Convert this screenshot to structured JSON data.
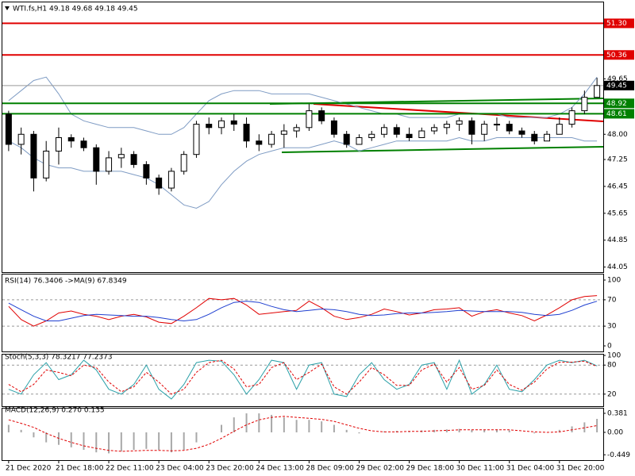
{
  "chart_data": [
    {
      "type": "candlestick",
      "title": "WTI.fs,H1  49.18 49.68 49.18 49.45",
      "categories": [
        "21 Dec 2020",
        null,
        null,
        null,
        "21 Dec 18:00",
        null,
        null,
        null,
        "22 Dec 11:00",
        null,
        null,
        null,
        "23 Dec 04:00",
        null,
        null,
        null,
        "23 Dec 20:00",
        null,
        null,
        null,
        "24 Dec 13:00",
        null,
        null,
        null,
        "28 Dec 09:00",
        null,
        null,
        null,
        "29 Dec 02:00",
        null,
        null,
        null,
        "29 Dec 18:00",
        null,
        null,
        null,
        "30 Dec 11:00",
        null,
        null,
        null,
        "31 Dec 04:00",
        null,
        null,
        null,
        "31 Dec 20:00",
        null,
        null,
        null
      ],
      "open": [
        48.6,
        47.7,
        48.0,
        46.7,
        47.5,
        47.9,
        47.8,
        47.6,
        46.9,
        47.3,
        47.4,
        47.1,
        46.7,
        46.4,
        46.9,
        47.4,
        48.3,
        48.2,
        48.4,
        48.3,
        47.8,
        47.7,
        48.0,
        48.1,
        48.2,
        48.7,
        48.4,
        48.0,
        47.7,
        47.9,
        48.0,
        48.2,
        48.0,
        47.9,
        48.1,
        48.2,
        48.3,
        48.4,
        48.0,
        48.3,
        48.3,
        48.1,
        48.0,
        47.8,
        48.0,
        48.3,
        48.7,
        49.1
      ],
      "high": [
        48.7,
        48.2,
        48.1,
        47.8,
        48.2,
        48.0,
        47.9,
        47.7,
        47.5,
        47.6,
        47.5,
        47.2,
        46.8,
        47.0,
        47.5,
        48.4,
        48.5,
        48.5,
        48.6,
        48.5,
        48.0,
        48.1,
        48.3,
        48.3,
        48.9,
        48.8,
        48.5,
        48.1,
        48.0,
        48.1,
        48.3,
        48.3,
        48.2,
        48.2,
        48.3,
        48.4,
        48.5,
        48.5,
        48.4,
        48.5,
        48.4,
        48.2,
        48.1,
        48.1,
        48.5,
        48.8,
        49.3,
        49.68
      ],
      "low": [
        47.5,
        47.4,
        46.3,
        46.6,
        47.1,
        47.6,
        47.5,
        46.5,
        46.8,
        47.0,
        47.0,
        46.5,
        46.2,
        46.3,
        46.8,
        47.3,
        48.0,
        48.0,
        48.1,
        47.6,
        47.5,
        47.6,
        47.6,
        47.9,
        48.1,
        48.3,
        47.9,
        47.6,
        47.7,
        47.8,
        47.9,
        47.9,
        47.8,
        47.9,
        48.0,
        48.0,
        48.1,
        47.7,
        47.8,
        48.1,
        48.0,
        47.9,
        47.7,
        47.8,
        48.0,
        48.2,
        48.6,
        49.1
      ],
      "close": [
        47.7,
        48.0,
        46.7,
        47.5,
        47.9,
        47.8,
        47.6,
        46.9,
        47.3,
        47.4,
        47.1,
        46.7,
        46.4,
        46.9,
        47.4,
        48.3,
        48.2,
        48.4,
        48.3,
        47.8,
        47.7,
        48.0,
        48.1,
        48.2,
        48.7,
        48.4,
        48.0,
        47.7,
        47.9,
        48.0,
        48.2,
        48.0,
        47.9,
        48.1,
        48.2,
        48.3,
        48.4,
        48.0,
        48.3,
        48.3,
        48.1,
        48.0,
        47.8,
        48.0,
        48.3,
        48.7,
        49.1,
        49.45
      ],
      "up_color": "#ffffff",
      "down_color": "#000000",
      "wick_color": "#000000",
      "upper_band": [
        49.0,
        49.3,
        49.6,
        49.7,
        49.2,
        48.6,
        48.4,
        48.3,
        48.2,
        48.2,
        48.2,
        48.1,
        48.0,
        48.0,
        48.2,
        48.6,
        49.0,
        49.2,
        49.3,
        49.3,
        49.3,
        49.2,
        49.2,
        49.2,
        49.2,
        49.1,
        49.0,
        48.9,
        48.8,
        48.7,
        48.6,
        48.6,
        48.5,
        48.5,
        48.5,
        48.5,
        48.6,
        48.6,
        48.6,
        48.6,
        48.5,
        48.5,
        48.5,
        48.5,
        48.6,
        48.8,
        49.2,
        49.7
      ],
      "lower_band": [
        47.8,
        47.6,
        47.3,
        47.1,
        47.0,
        47.0,
        46.9,
        46.9,
        46.9,
        46.9,
        46.8,
        46.7,
        46.5,
        46.2,
        45.9,
        45.8,
        46.0,
        46.5,
        46.9,
        47.2,
        47.4,
        47.5,
        47.6,
        47.6,
        47.6,
        47.7,
        47.8,
        47.7,
        47.5,
        47.6,
        47.7,
        47.8,
        47.8,
        47.8,
        47.8,
        47.8,
        47.9,
        47.8,
        47.8,
        47.9,
        47.9,
        47.9,
        47.9,
        47.9,
        47.9,
        47.9,
        47.8,
        47.8
      ],
      "band_color": "#7f9cc4",
      "levels": [
        {
          "value": 51.3,
          "label": "51.30"
        },
        50.36,
        49.45,
        48.92,
        48.61
      ],
      "level_colors": [
        "#e00000",
        "#e00000",
        "#9a9a9a",
        "#008000",
        "#008000"
      ],
      "ylim": [
        43.9,
        51.9
      ],
      "yticks": [
        49.65,
        {
          "value": 48,
          "label": "48.00"
        },
        47.25,
        46.45,
        45.65,
        44.85,
        44.05
      ]
    },
    {
      "type": "line",
      "title": "RSI(14) 76.3406  ->MA(9) 67.8349",
      "series": [
        {
          "color": "#e00000",
          "values": [
            60,
            40,
            30,
            38,
            50,
            53,
            48,
            45,
            40,
            45,
            48,
            44,
            36,
            34,
            45,
            58,
            72,
            70,
            72,
            62,
            48,
            50,
            52,
            54,
            68,
            58,
            45,
            40,
            43,
            48,
            56,
            52,
            47,
            50,
            55,
            56,
            58,
            45,
            52,
            55,
            50,
            46,
            38,
            47,
            58,
            70,
            75,
            76.34
          ]
        },
        {
          "color": "#1f3fd0",
          "values": [
            65,
            55,
            45,
            38,
            38,
            42,
            46,
            48,
            47,
            46,
            45,
            45,
            43,
            40,
            38,
            40,
            48,
            58,
            66,
            68,
            66,
            60,
            55,
            52,
            54,
            56,
            55,
            52,
            48,
            46,
            47,
            49,
            50,
            50,
            51,
            52,
            54,
            53,
            52,
            52,
            52,
            51,
            48,
            46,
            48,
            54,
            62,
            67.83
          ]
        }
      ],
      "levels": [
        70,
        30
      ],
      "ylim": [
        0,
        100
      ],
      "yticks": [
        100,
        70,
        30,
        0
      ]
    },
    {
      "type": "line",
      "title": "Stoch(5,3,3) 78.3217 77.2373",
      "series": [
        {
          "color": "#2aa0a8",
          "values": [
            30,
            20,
            60,
            85,
            50,
            60,
            90,
            70,
            30,
            20,
            40,
            80,
            30,
            10,
            40,
            85,
            90,
            88,
            60,
            20,
            50,
            90,
            85,
            30,
            80,
            85,
            20,
            15,
            60,
            85,
            50,
            30,
            40,
            80,
            85,
            30,
            90,
            20,
            40,
            80,
            30,
            25,
            50,
            80,
            90,
            85,
            90,
            78.32
          ]
        },
        {
          "color": "#e00000",
          "dashed": true,
          "values": [
            40,
            25,
            40,
            70,
            65,
            58,
            80,
            75,
            45,
            25,
            35,
            65,
            45,
            20,
            30,
            65,
            85,
            90,
            72,
            35,
            40,
            75,
            85,
            50,
            65,
            82,
            35,
            20,
            45,
            75,
            60,
            38,
            38,
            70,
            82,
            45,
            75,
            30,
            38,
            70,
            40,
            28,
            45,
            72,
            86,
            86,
            88,
            77.24
          ]
        }
      ],
      "levels": [
        80,
        20
      ],
      "ylim": [
        0,
        100
      ],
      "yticks": [
        100,
        80,
        20
      ]
    },
    {
      "type": "macd",
      "title": "MACD(12,26,9) 0.270 0.135",
      "values": [
        0.15,
        0.05,
        -0.1,
        -0.2,
        -0.25,
        -0.3,
        -0.35,
        -0.4,
        -0.42,
        -0.38,
        -0.35,
        -0.33,
        -0.35,
        -0.4,
        -0.35,
        -0.2,
        0.0,
        0.15,
        0.3,
        0.38,
        0.38,
        0.35,
        0.3,
        0.25,
        0.25,
        0.22,
        0.15,
        0.05,
        -0.02,
        0.0,
        0.02,
        0.03,
        0.02,
        0.04,
        0.05,
        0.06,
        0.07,
        0.05,
        0.05,
        0.06,
        0.04,
        0.0,
        -0.02,
        0.0,
        0.05,
        0.12,
        0.2,
        0.27
      ],
      "color": "#a8a8a8",
      "signal": {
        "color": "#e00000",
        "dashed": true,
        "values": [
          0.25,
          0.18,
          0.1,
          -0.02,
          -0.12,
          -0.2,
          -0.27,
          -0.32,
          -0.36,
          -0.38,
          -0.37,
          -0.36,
          -0.36,
          -0.37,
          -0.36,
          -0.32,
          -0.24,
          -0.12,
          0.02,
          0.15,
          0.25,
          0.3,
          0.32,
          0.3,
          0.28,
          0.26,
          0.22,
          0.15,
          0.08,
          0.03,
          0.01,
          0.01,
          0.02,
          0.02,
          0.03,
          0.04,
          0.05,
          0.05,
          0.05,
          0.05,
          0.05,
          0.03,
          0.01,
          0.0,
          0.01,
          0.05,
          0.09,
          0.135
        ]
      },
      "ylim": [
        -0.556,
        0.476
      ],
      "yticks": [
        0.381,
        {
          "value": 0,
          "label": "0.00"
        },
        -0.449
      ]
    }
  ]
}
